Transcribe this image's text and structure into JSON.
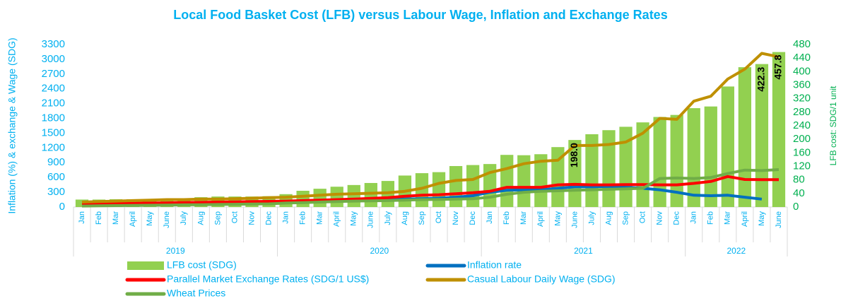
{
  "chart_data": {
    "type": "bar",
    "title": "Local Food Basket Cost (LFB) versus Labour Wage, Inflation and Exchange Rates",
    "ylabel": "Inflation (%) & exchange & Wage (SDG)",
    "y2label": "LFB cost: SDG/1 unit",
    "categories": [
      "Jan",
      "Feb",
      "Mar",
      "April",
      "May",
      "June",
      "July",
      "Aug",
      "Sep",
      "Oct",
      "Nov",
      "Dec",
      "Jan",
      "Feb",
      "Mar",
      "April",
      "May",
      "June",
      "July",
      "Aug",
      "Sep",
      "Oct",
      "Nov",
      "Dec",
      "Jan",
      "Feb",
      "Mar",
      "April",
      "May",
      "June",
      "July",
      "Aug",
      "Sep",
      "Oct",
      "Nov",
      "Dec",
      "Jan",
      "Feb",
      "Mar",
      "April",
      "May",
      "June"
    ],
    "groups": [
      "2019",
      "2020",
      "2021",
      "2022"
    ],
    "ylim": [
      0,
      3300
    ],
    "yticks": [
      0,
      300,
      600,
      900,
      1200,
      1500,
      1800,
      2100,
      2400,
      2700,
      3000,
      3300
    ],
    "y2lim": [
      0,
      480
    ],
    "y2ticks": [
      0,
      40,
      80,
      120,
      160,
      200,
      240,
      280,
      320,
      360,
      400,
      440,
      480
    ],
    "grid": false,
    "series": [
      {
        "name": "LFB cost (SDG)",
        "type": "bar",
        "axis": "y2",
        "color": "#92d050",
        "values": [
          22,
          22,
          23,
          23,
          24,
          25,
          26,
          29,
          31,
          31,
          31,
          32,
          38,
          48,
          54,
          60,
          65,
          71,
          77,
          93,
          100,
          103,
          121,
          124,
          127,
          154,
          153,
          156,
          177,
          198,
          215,
          227,
          237,
          250,
          266,
          272,
          292,
          297,
          356,
          413,
          422.3,
          457.8
        ],
        "value_labels": [
          null,
          null,
          null,
          null,
          null,
          null,
          null,
          null,
          null,
          null,
          null,
          null,
          null,
          null,
          null,
          null,
          null,
          null,
          null,
          null,
          null,
          null,
          null,
          null,
          null,
          null,
          null,
          null,
          null,
          "198.0",
          null,
          null,
          null,
          null,
          null,
          null,
          null,
          null,
          null,
          null,
          "422.3",
          "457.8"
        ]
      },
      {
        "name": "Inflation rate",
        "type": "line",
        "color": "#0070c0",
        "values": [
          40,
          45,
          50,
          55,
          60,
          60,
          65,
          70,
          75,
          80,
          85,
          95,
          110,
          120,
          125,
          130,
          140,
          145,
          150,
          160,
          170,
          180,
          200,
          230,
          300,
          340,
          350,
          350,
          380,
          410,
          410,
          420,
          400,
          380,
          350,
          300,
          240,
          230,
          240,
          200,
          160,
          null
        ]
      },
      {
        "name": "Parallel Market Exchange Rates (SDG/1 US$)",
        "type": "line",
        "color": "#ff0000",
        "values": [
          60,
          65,
          70,
          75,
          80,
          85,
          90,
          95,
          100,
          105,
          110,
          115,
          120,
          130,
          140,
          150,
          160,
          175,
          190,
          220,
          240,
          250,
          270,
          290,
          320,
          400,
          400,
          400,
          450,
          460,
          450,
          450,
          455,
          455,
          450,
          450,
          480,
          520,
          620,
          560,
          555,
          555
        ]
      },
      {
        "name": "Casual Labour Daily Wage (SDG)",
        "type": "line",
        "color": "#bf9000",
        "values": [
          100,
          110,
          120,
          130,
          140,
          150,
          150,
          160,
          160,
          170,
          180,
          190,
          200,
          220,
          240,
          260,
          270,
          280,
          290,
          320,
          380,
          480,
          540,
          560,
          700,
          780,
          880,
          930,
          950,
          1250,
          1250,
          1270,
          1320,
          1500,
          1800,
          1780,
          2150,
          2250,
          2600,
          2800,
          3120,
          3050
        ]
      },
      {
        "name": "Wheat Prices",
        "type": "line",
        "color": "#70ad47",
        "values": [
          20,
          24,
          28,
          32,
          36,
          40,
          44,
          48,
          52,
          56,
          60,
          65,
          80,
          90,
          100,
          110,
          120,
          125,
          130,
          140,
          150,
          155,
          160,
          170,
          200,
          260,
          300,
          320,
          330,
          340,
          350,
          360,
          370,
          380,
          580,
          590,
          580,
          600,
          680,
          750,
          740,
          760
        ]
      }
    ]
  }
}
